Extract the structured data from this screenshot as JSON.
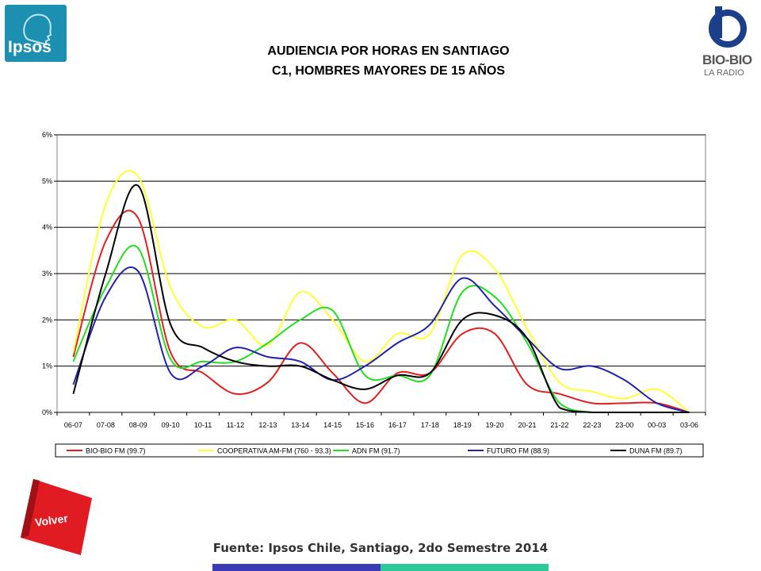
{
  "header": {
    "title_line1": "AUDIENCIA POR HORAS EN SANTIAGO",
    "title_line2": "C1, HOMBRES MAYORES DE 15 AÑOS"
  },
  "logos": {
    "ipsos": "Ipsos",
    "biobio_line1": "BIO-BIO",
    "biobio_line2": "LA RADIO"
  },
  "nav": {
    "volver_label": "Volver"
  },
  "footer": {
    "source": "Fuente: Ipsos Chile, Santiago, 2do Semestre 2014"
  },
  "chart_data": {
    "type": "line",
    "categories": [
      "06-07",
      "07-08",
      "08-09",
      "09-10",
      "10-11",
      "11-12",
      "12-13",
      "13-14",
      "14-15",
      "15-16",
      "16-17",
      "17-18",
      "18-19",
      "19-20",
      "20-21",
      "21-22",
      "22-23",
      "23-00",
      "00-03",
      "03-06"
    ],
    "y_ticks": [
      "0%",
      "1%",
      "2%",
      "3%",
      "4%",
      "5%",
      "6%"
    ],
    "ylim": [
      0,
      6
    ],
    "grid": true,
    "legend_position": "bottom",
    "series": [
      {
        "name": "BIO-BIO FM (99.7)",
        "color": "#e02020",
        "values": [
          1.2,
          3.7,
          4.2,
          1.3,
          0.85,
          0.4,
          0.65,
          1.5,
          0.85,
          0.2,
          0.85,
          0.85,
          1.7,
          1.7,
          0.6,
          0.4,
          0.2,
          0.2,
          0.2,
          0.0
        ]
      },
      {
        "name": "COOPERATIVA AM-FM (760 - 93.3)",
        "color": "#ffff33",
        "values": [
          1.3,
          4.5,
          5.1,
          2.7,
          1.85,
          2.0,
          1.45,
          2.6,
          2.0,
          1.1,
          1.7,
          1.7,
          3.4,
          3.1,
          1.8,
          0.65,
          0.45,
          0.3,
          0.5,
          0.0
        ]
      },
      {
        "name": "ADN FM (91.7)",
        "color": "#22dd22",
        "values": [
          1.1,
          2.7,
          3.55,
          1.15,
          1.1,
          1.1,
          1.5,
          2.0,
          2.2,
          0.8,
          0.8,
          0.8,
          2.6,
          2.5,
          1.5,
          0.2,
          0.0,
          0.0,
          0.0,
          0.0
        ]
      },
      {
        "name": "FUTURO FM (88.9)",
        "color": "#2222aa",
        "values": [
          0.6,
          2.5,
          3.05,
          0.85,
          1.0,
          1.4,
          1.2,
          1.1,
          0.7,
          1.0,
          1.5,
          1.9,
          2.9,
          2.3,
          1.6,
          0.95,
          1.0,
          0.7,
          0.2,
          0.0
        ]
      },
      {
        "name": "DUNA FM (89.7)",
        "color": "#000000",
        "values": [
          0.4,
          3.0,
          4.9,
          1.9,
          1.4,
          1.1,
          1.0,
          1.0,
          0.7,
          0.5,
          0.8,
          0.85,
          2.0,
          2.1,
          1.6,
          0.1,
          0.0,
          0.0,
          0.0,
          0.0
        ]
      }
    ]
  }
}
